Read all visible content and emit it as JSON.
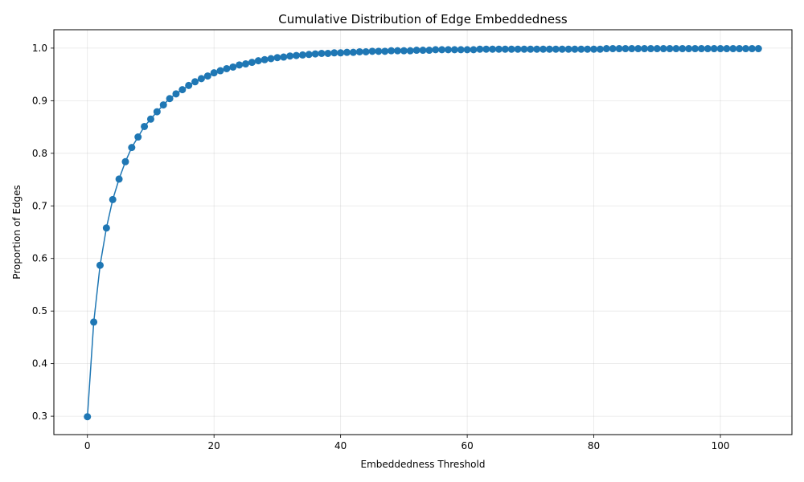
{
  "chart_data": {
    "type": "line",
    "title": "Cumulative Distribution of Edge Embeddedness",
    "xlabel": "Embeddedness Threshold",
    "ylabel": "Proportion of Edges",
    "xlim": [
      -5.3,
      111.3
    ],
    "ylim": [
      0.265,
      1.035
    ],
    "xticks": [
      0,
      20,
      40,
      60,
      80,
      100
    ],
    "xtick_labels": [
      "0",
      "20",
      "40",
      "60",
      "80",
      "100"
    ],
    "yticks": [
      0.3,
      0.4,
      0.5,
      0.6,
      0.7,
      0.8,
      0.9,
      1.0
    ],
    "ytick_labels": [
      "0.3",
      "0.4",
      "0.5",
      "0.6",
      "0.7",
      "0.8",
      "0.9",
      "1.0"
    ],
    "grid": true,
    "color": "#1f77b4",
    "series": [
      {
        "marker": "circle",
        "x": [
          0,
          1,
          2,
          3,
          4,
          5,
          6,
          7,
          8,
          9,
          10,
          11,
          12,
          13,
          14,
          15,
          16,
          17,
          18,
          19,
          20,
          21,
          22,
          23,
          24,
          25,
          26,
          27,
          28,
          29,
          30,
          31,
          32,
          33,
          34,
          35,
          36,
          37,
          38,
          39,
          40,
          41,
          42,
          43,
          44,
          45,
          46,
          47,
          48,
          49,
          50,
          51,
          52,
          53,
          54,
          55,
          56,
          57,
          58,
          59,
          60,
          61,
          62,
          63,
          64,
          65,
          66,
          67,
          68,
          69,
          70,
          71,
          72,
          73,
          74,
          75,
          76,
          77,
          78,
          79,
          80,
          81,
          82,
          83,
          84,
          85,
          86,
          87,
          88,
          89,
          90,
          91,
          92,
          93,
          94,
          95,
          96,
          97,
          98,
          99,
          100,
          101,
          102,
          103,
          104,
          105,
          106
        ],
        "y": [
          0.299,
          0.479,
          0.587,
          0.658,
          0.712,
          0.751,
          0.784,
          0.811,
          0.831,
          0.851,
          0.865,
          0.879,
          0.892,
          0.904,
          0.913,
          0.921,
          0.929,
          0.936,
          0.942,
          0.947,
          0.953,
          0.957,
          0.961,
          0.964,
          0.968,
          0.97,
          0.973,
          0.976,
          0.978,
          0.98,
          0.982,
          0.983,
          0.985,
          0.986,
          0.987,
          0.988,
          0.989,
          0.99,
          0.99,
          0.991,
          0.991,
          0.992,
          0.992,
          0.993,
          0.993,
          0.994,
          0.994,
          0.994,
          0.995,
          0.995,
          0.995,
          0.995,
          0.996,
          0.996,
          0.996,
          0.997,
          0.997,
          0.997,
          0.997,
          0.997,
          0.997,
          0.997,
          0.998,
          0.998,
          0.998,
          0.998,
          0.998,
          0.998,
          0.998,
          0.998,
          0.998,
          0.998,
          0.998,
          0.998,
          0.998,
          0.998,
          0.998,
          0.998,
          0.998,
          0.998,
          0.998,
          0.998,
          0.999,
          0.999,
          0.999,
          0.999,
          0.999,
          0.999,
          0.999,
          0.999,
          0.999,
          0.999,
          0.999,
          0.999,
          0.999,
          0.999,
          0.999,
          0.999,
          0.999,
          0.999,
          0.999,
          0.999,
          0.999,
          0.999,
          0.999,
          0.999,
          0.999
        ]
      }
    ]
  }
}
